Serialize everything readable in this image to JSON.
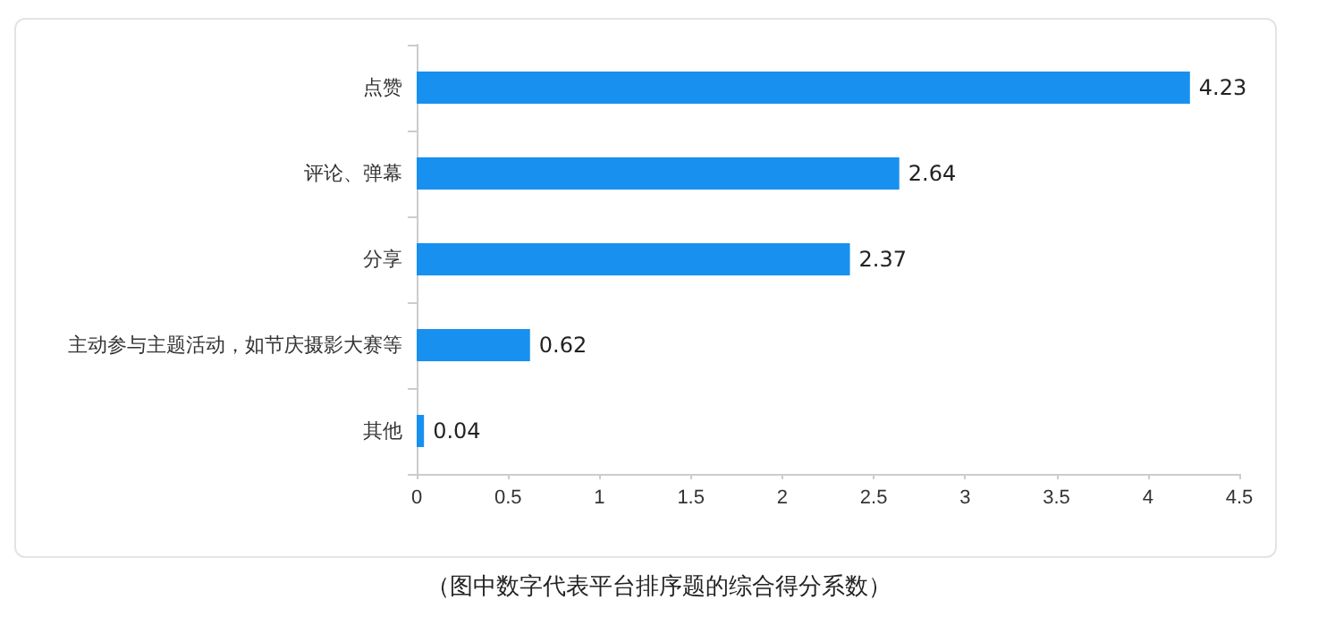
{
  "chart_data": {
    "type": "bar",
    "orientation": "horizontal",
    "categories": [
      "点赞",
      "评论、弹幕",
      "分享",
      "主动参与主题活动，如节庆摄影大赛等",
      "其他"
    ],
    "values": [
      4.23,
      2.64,
      2.37,
      0.62,
      0.04
    ],
    "color": "#1890f0",
    "xlim": [
      0,
      4.5
    ],
    "xticks": [
      0,
      0.5,
      1,
      1.5,
      2,
      2.5,
      3,
      3.5,
      4,
      4.5
    ],
    "grid": false,
    "data_labels": true,
    "annotations": [
      "（图中数字代表平台排序题的综合得分系数）"
    ]
  }
}
